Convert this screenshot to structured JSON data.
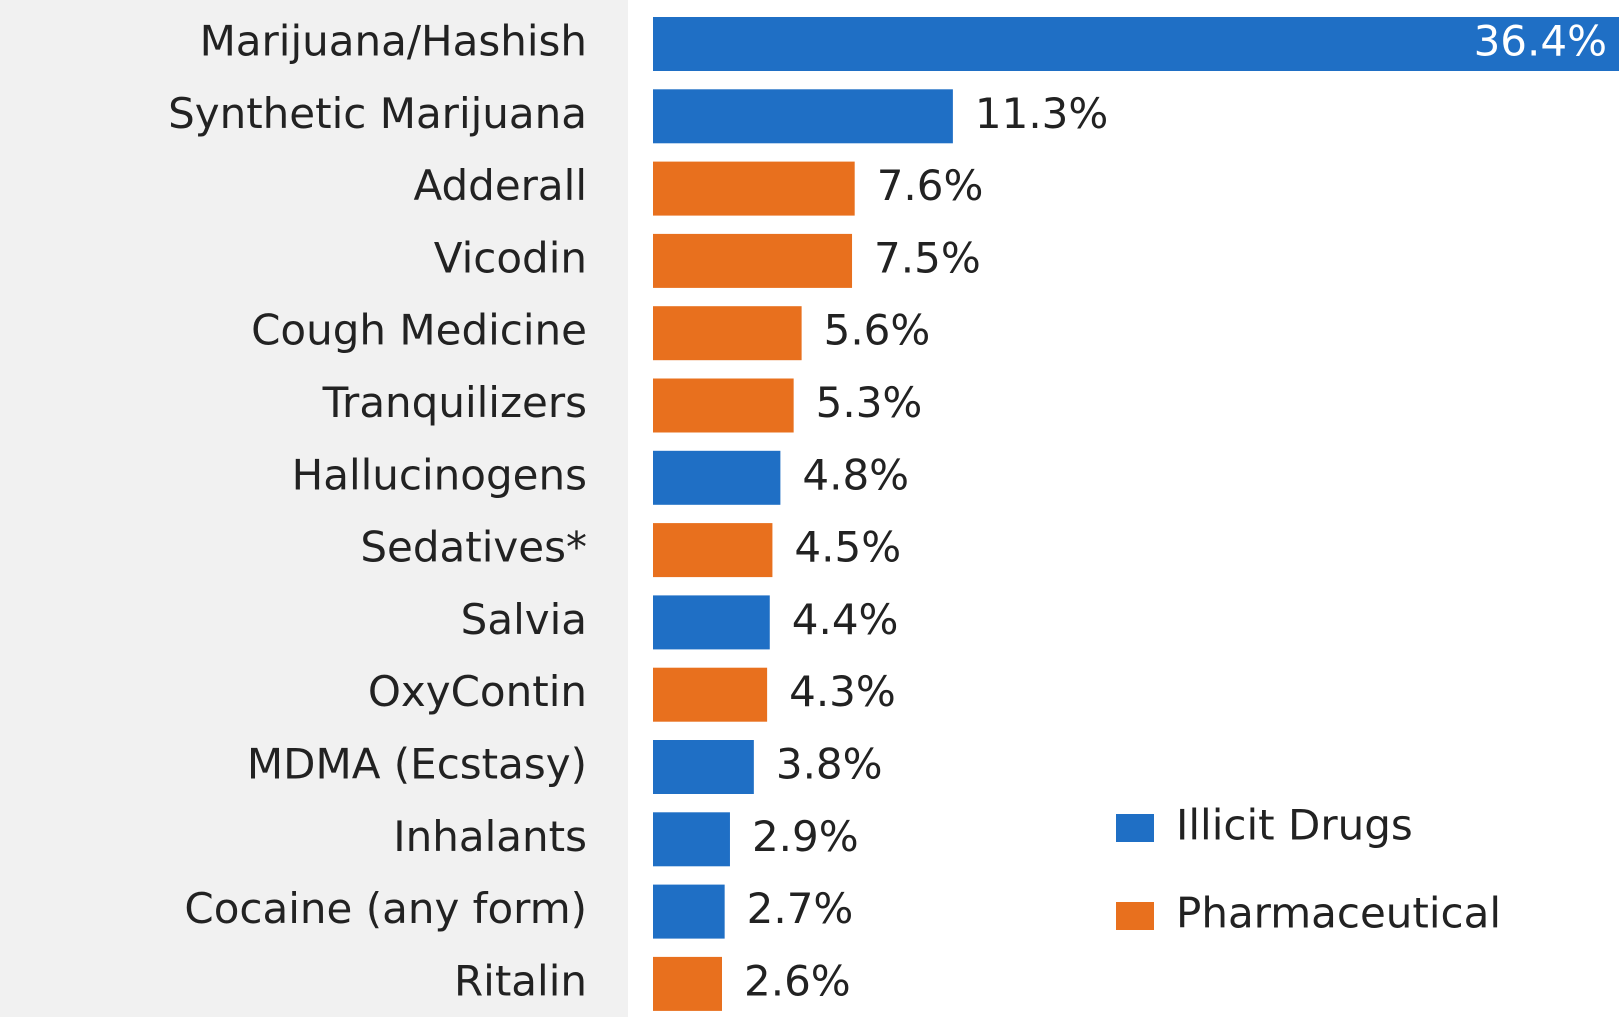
{
  "chart_data": {
    "type": "hbar",
    "categories": [
      "Marijuana/Hashish",
      "Synthetic Marijuana",
      "Adderall",
      "Vicodin",
      "Cough Medicine",
      "Tranquilizers",
      "Hallucinogens",
      "Sedatives*",
      "Salvia",
      "OxyContin",
      "MDMA (Ecstasy)",
      "Inhalants",
      "Cocaine (any form)",
      "Ritalin"
    ],
    "series": [
      {
        "name": "Illicit Drugs",
        "color": "#1f6fc5",
        "values": [
          36.4,
          11.3,
          null,
          null,
          null,
          null,
          4.8,
          null,
          4.4,
          null,
          3.8,
          2.9,
          2.7,
          null
        ],
        "value_labels": [
          "36.4%",
          "11.3%",
          null,
          null,
          null,
          null,
          "4.8%",
          null,
          "4.4%",
          null,
          "3.8%",
          "2.9%",
          "2.7%",
          null
        ]
      },
      {
        "name": "Pharmaceutical",
        "color": "#e8701e",
        "values": [
          null,
          null,
          7.6,
          7.5,
          5.6,
          5.3,
          null,
          4.5,
          null,
          4.3,
          null,
          null,
          null,
          2.6
        ],
        "value_labels": [
          null,
          null,
          "7.6%",
          "7.5%",
          "5.6%",
          "5.3%",
          null,
          "4.5%",
          null,
          "4.3%",
          null,
          null,
          null,
          "2.6%"
        ]
      }
    ]
  }
}
